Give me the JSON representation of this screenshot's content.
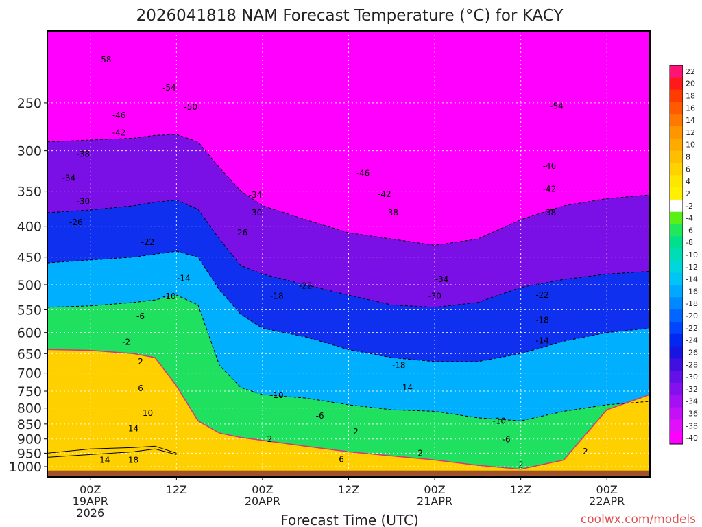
{
  "chart_data": {
    "type": "heatmap",
    "title": "2026041818 NAM Forecast Temperature (°C) for KACY",
    "xlabel": "Forecast Time (UTC)",
    "ylabel": "",
    "credit": "coolwx.com/models",
    "x_ticks": [
      {
        "hours": 6,
        "lines": [
          "00Z",
          "19APR",
          "2026"
        ]
      },
      {
        "hours": 18,
        "lines": [
          "12Z"
        ]
      },
      {
        "hours": 30,
        "lines": [
          "00Z",
          "20APR"
        ]
      },
      {
        "hours": 42,
        "lines": [
          "12Z"
        ]
      },
      {
        "hours": 54,
        "lines": [
          "00Z",
          "21APR"
        ]
      },
      {
        "hours": 66,
        "lines": [
          "12Z"
        ]
      },
      {
        "hours": 78,
        "lines": [
          "00Z",
          "22APR"
        ]
      }
    ],
    "xlim_hours": [
      0,
      84
    ],
    "y_axis": {
      "scale": "log",
      "inverted": true,
      "ticks": [
        250,
        300,
        350,
        400,
        450,
        500,
        550,
        600,
        650,
        700,
        750,
        800,
        850,
        900,
        950,
        1000
      ],
      "ylim": [
        190,
        1040
      ]
    },
    "surface_pressure": 1015,
    "colorbar": {
      "ticks": [
        22,
        20,
        18,
        16,
        14,
        12,
        10,
        8,
        6,
        4,
        2,
        -2,
        -4,
        -6,
        -8,
        -10,
        -12,
        -14,
        -16,
        -18,
        -20,
        -22,
        -24,
        -26,
        -28,
        -30,
        -32,
        -34,
        -36,
        -38,
        -40
      ],
      "colors": [
        "#ff1475",
        "#ff1a1a",
        "#ff3c00",
        "#ff5a00",
        "#ff7800",
        "#ff9600",
        "#ffaa00",
        "#ffbe00",
        "#ffd200",
        "#ffe600",
        "#fff000",
        "#ffffff",
        "#58f018",
        "#20e85a",
        "#00e08c",
        "#00ddb6",
        "#00d6dc",
        "#00c4f4",
        "#00a8ff",
        "#0088ff",
        "#0066ff",
        "#0046ff",
        "#0028f0",
        "#1a14e0",
        "#4010e0",
        "#6410e8",
        "#8410ee",
        "#a410f2",
        "#c410f6",
        "#e010fa",
        "#ff00ff"
      ]
    },
    "time_hours": [
      0,
      6,
      12,
      15,
      18,
      21,
      24,
      27,
      30,
      36,
      42,
      48,
      54,
      60,
      66,
      72,
      78,
      84
    ],
    "isotherm_pressures": {
      "t22": [
        null,
        null,
        null,
        null,
        null,
        null,
        null,
        null,
        null,
        null,
        null,
        null,
        null,
        null,
        null,
        null,
        null,
        null
      ],
      "t14": [
        950,
        935,
        930,
        925,
        950,
        null,
        null,
        null,
        null,
        null,
        null,
        null,
        null,
        null,
        null,
        null,
        null,
        null
      ],
      "t10": [
        965,
        955,
        945,
        935,
        955,
        null,
        null,
        null,
        null,
        null,
        null,
        null,
        null,
        null,
        null,
        null,
        null,
        null
      ],
      "t2": [
        640,
        642,
        650,
        660,
        735,
        840,
        880,
        895,
        905,
        925,
        945,
        960,
        975,
        995,
        1010,
        975,
        805,
        760
      ],
      "tm10": [
        545,
        542,
        535,
        530,
        520,
        540,
        680,
        740,
        760,
        770,
        790,
        805,
        810,
        830,
        840,
        810,
        790,
        780
      ],
      "tm20": [
        460,
        455,
        450,
        445,
        440,
        450,
        510,
        560,
        590,
        610,
        640,
        660,
        670,
        670,
        650,
        620,
        600,
        590
      ],
      "tm30": [
        380,
        376,
        370,
        365,
        362,
        375,
        420,
        465,
        480,
        500,
        520,
        540,
        545,
        535,
        505,
        490,
        480,
        475
      ],
      "tm40": [
        290,
        288,
        286,
        283,
        282,
        290,
        320,
        350,
        370,
        390,
        410,
        420,
        430,
        420,
        390,
        370,
        360,
        355
      ]
    },
    "isotherm_labels": [
      {
        "text": "-58",
        "hours": 8,
        "p": 212
      },
      {
        "text": "-54",
        "hours": 17,
        "p": 236
      },
      {
        "text": "-50",
        "hours": 20,
        "p": 254
      },
      {
        "text": "-46",
        "hours": 10,
        "p": 262
      },
      {
        "text": "-42",
        "hours": 10,
        "p": 280
      },
      {
        "text": "-38",
        "hours": 5,
        "p": 304
      },
      {
        "text": "-34",
        "hours": 3,
        "p": 333
      },
      {
        "text": "-30",
        "hours": 5,
        "p": 364
      },
      {
        "text": "-26",
        "hours": 4,
        "p": 394
      },
      {
        "text": "-22",
        "hours": 14,
        "p": 425
      },
      {
        "text": "-14",
        "hours": 19,
        "p": 488
      },
      {
        "text": "-10",
        "hours": 17,
        "p": 523
      },
      {
        "text": "-6",
        "hours": 13,
        "p": 564
      },
      {
        "text": "-2",
        "hours": 11,
        "p": 622
      },
      {
        "text": "2",
        "hours": 13,
        "p": 670
      },
      {
        "text": "6",
        "hours": 13,
        "p": 742
      },
      {
        "text": "10",
        "hours": 14,
        "p": 815
      },
      {
        "text": "14",
        "hours": 12,
        "p": 865
      },
      {
        "text": "18",
        "hours": 12,
        "p": 975
      },
      {
        "text": "14",
        "hours": 8,
        "p": 975
      },
      {
        "text": "-34",
        "hours": 29,
        "p": 355
      },
      {
        "text": "-30",
        "hours": 29,
        "p": 380
      },
      {
        "text": "-26",
        "hours": 27,
        "p": 410
      },
      {
        "text": "-18",
        "hours": 32,
        "p": 522
      },
      {
        "text": "-22",
        "hours": 36,
        "p": 502
      },
      {
        "text": "-10",
        "hours": 32,
        "p": 762
      },
      {
        "text": "-6",
        "hours": 38,
        "p": 824
      },
      {
        "text": "2",
        "hours": 31,
        "p": 901
      },
      {
        "text": "2",
        "hours": 43,
        "p": 875
      },
      {
        "text": "6",
        "hours": 41,
        "p": 973
      },
      {
        "text": "-46",
        "hours": 44,
        "p": 327
      },
      {
        "text": "-42",
        "hours": 47,
        "p": 354
      },
      {
        "text": "-38",
        "hours": 48,
        "p": 380
      },
      {
        "text": "-34",
        "hours": 55,
        "p": 490
      },
      {
        "text": "-30",
        "hours": 54,
        "p": 522
      },
      {
        "text": "-18",
        "hours": 49,
        "p": 680
      },
      {
        "text": "-14",
        "hours": 50,
        "p": 740
      },
      {
        "text": "-10",
        "hours": 63,
        "p": 840
      },
      {
        "text": "-6",
        "hours": 64,
        "p": 902
      },
      {
        "text": "2",
        "hours": 52,
        "p": 950
      },
      {
        "text": "2",
        "hours": 66,
        "p": 993
      },
      {
        "text": "-54",
        "hours": 71,
        "p": 253
      },
      {
        "text": "-46",
        "hours": 70,
        "p": 318
      },
      {
        "text": "-42",
        "hours": 70,
        "p": 347
      },
      {
        "text": "-38",
        "hours": 70,
        "p": 380
      },
      {
        "text": "-22",
        "hours": 69,
        "p": 520
      },
      {
        "text": "-18",
        "hours": 69,
        "p": 572
      },
      {
        "text": "-14",
        "hours": 69,
        "p": 619
      },
      {
        "text": "2",
        "hours": 75,
        "p": 944
      }
    ]
  }
}
